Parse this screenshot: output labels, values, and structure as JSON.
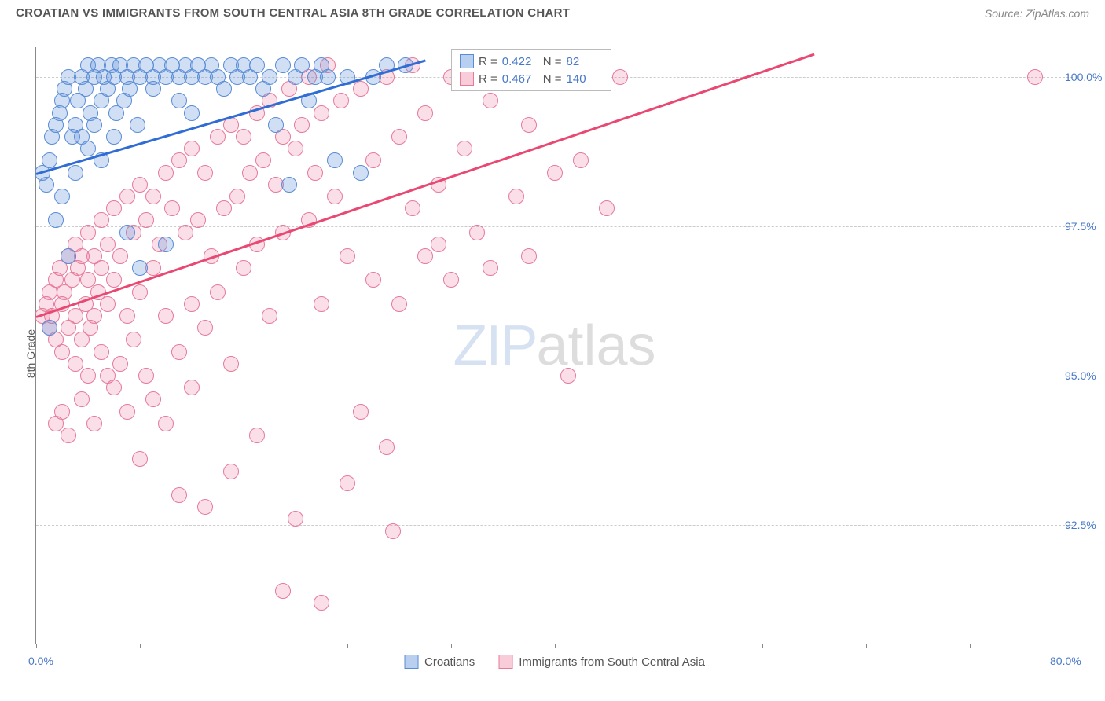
{
  "header": {
    "title": "CROATIAN VS IMMIGRANTS FROM SOUTH CENTRAL ASIA 8TH GRADE CORRELATION CHART",
    "source": "Source: ZipAtlas.com"
  },
  "ylabel": "8th Grade",
  "watermark": {
    "a": "ZIP",
    "b": "atlas"
  },
  "chart": {
    "type": "scatter",
    "xlim": [
      0,
      80
    ],
    "ylim": [
      90.5,
      100.5
    ],
    "xtick_positions": [
      0,
      8,
      16,
      24,
      32,
      40,
      48,
      56,
      64,
      72,
      80
    ],
    "xtick_label_min": "0.0%",
    "xtick_label_max": "80.0%",
    "ytick_positions": [
      92.5,
      95.0,
      97.5,
      100.0
    ],
    "ytick_labels": [
      "92.5%",
      "95.0%",
      "97.5%",
      "100.0%"
    ],
    "grid_color": "#cccccc",
    "marker_radius": 10,
    "series": [
      {
        "name": "Croatians",
        "color_fill": "rgba(99,148,219,0.30)",
        "color_stroke": "#5a8cd6",
        "class": "pt-blue",
        "trend_class": "trend-blue",
        "trend": {
          "x1": 0,
          "y1": 98.4,
          "x2": 30,
          "y2": 100.3
        },
        "stats": {
          "R": "0.422",
          "N": "82"
        },
        "points": [
          [
            0.5,
            98.4
          ],
          [
            0.8,
            98.2
          ],
          [
            1.0,
            95.8
          ],
          [
            1.0,
            98.6
          ],
          [
            1.2,
            99.0
          ],
          [
            1.5,
            99.2
          ],
          [
            1.5,
            97.6
          ],
          [
            1.8,
            99.4
          ],
          [
            2.0,
            98.0
          ],
          [
            2.0,
            99.6
          ],
          [
            2.2,
            99.8
          ],
          [
            2.5,
            100.0
          ],
          [
            2.5,
            97.0
          ],
          [
            2.8,
            99.0
          ],
          [
            3.0,
            99.2
          ],
          [
            3.0,
            98.4
          ],
          [
            3.2,
            99.6
          ],
          [
            3.5,
            100.0
          ],
          [
            3.5,
            99.0
          ],
          [
            3.8,
            99.8
          ],
          [
            4.0,
            100.2
          ],
          [
            4.0,
            98.8
          ],
          [
            4.2,
            99.4
          ],
          [
            4.5,
            100.0
          ],
          [
            4.5,
            99.2
          ],
          [
            4.8,
            100.2
          ],
          [
            5.0,
            99.6
          ],
          [
            5.0,
            98.6
          ],
          [
            5.2,
            100.0
          ],
          [
            5.5,
            99.8
          ],
          [
            5.8,
            100.2
          ],
          [
            6.0,
            99.0
          ],
          [
            6.0,
            100.0
          ],
          [
            6.2,
            99.4
          ],
          [
            6.5,
            100.2
          ],
          [
            6.8,
            99.6
          ],
          [
            7.0,
            100.0
          ],
          [
            7.0,
            97.4
          ],
          [
            7.2,
            99.8
          ],
          [
            7.5,
            100.2
          ],
          [
            7.8,
            99.2
          ],
          [
            8.0,
            100.0
          ],
          [
            8.0,
            96.8
          ],
          [
            8.5,
            100.2
          ],
          [
            9.0,
            99.8
          ],
          [
            9.0,
            100.0
          ],
          [
            9.5,
            100.2
          ],
          [
            10.0,
            100.0
          ],
          [
            10.0,
            97.2
          ],
          [
            10.5,
            100.2
          ],
          [
            11.0,
            99.6
          ],
          [
            11.0,
            100.0
          ],
          [
            11.5,
            100.2
          ],
          [
            12.0,
            100.0
          ],
          [
            12.0,
            99.4
          ],
          [
            12.5,
            100.2
          ],
          [
            13.0,
            100.0
          ],
          [
            13.5,
            100.2
          ],
          [
            14.0,
            100.0
          ],
          [
            14.5,
            99.8
          ],
          [
            15.0,
            100.2
          ],
          [
            15.5,
            100.0
          ],
          [
            16.0,
            100.2
          ],
          [
            16.5,
            100.0
          ],
          [
            17.0,
            100.2
          ],
          [
            17.5,
            99.8
          ],
          [
            18.0,
            100.0
          ],
          [
            18.5,
            99.2
          ],
          [
            19.0,
            100.2
          ],
          [
            19.5,
            98.2
          ],
          [
            20.0,
            100.0
          ],
          [
            20.5,
            100.2
          ],
          [
            21.0,
            99.6
          ],
          [
            21.5,
            100.0
          ],
          [
            22.0,
            100.2
          ],
          [
            22.5,
            100.0
          ],
          [
            23.0,
            98.6
          ],
          [
            24.0,
            100.0
          ],
          [
            25.0,
            98.4
          ],
          [
            26.0,
            100.0
          ],
          [
            27.0,
            100.2
          ],
          [
            28.5,
            100.2
          ]
        ]
      },
      {
        "name": "Immigrants from South Central Asia",
        "color_fill": "rgba(237,110,150,0.22)",
        "color_stroke": "#e67a9a",
        "class": "pt-pink",
        "trend_class": "trend-pink",
        "trend": {
          "x1": 0,
          "y1": 96.0,
          "x2": 60,
          "y2": 100.4
        },
        "stats": {
          "R": "0.467",
          "N": "140"
        },
        "points": [
          [
            0.5,
            96.0
          ],
          [
            0.8,
            96.2
          ],
          [
            1.0,
            95.8
          ],
          [
            1.0,
            96.4
          ],
          [
            1.2,
            96.0
          ],
          [
            1.5,
            96.6
          ],
          [
            1.5,
            95.6
          ],
          [
            1.5,
            94.2
          ],
          [
            1.8,
            96.8
          ],
          [
            2.0,
            96.2
          ],
          [
            2.0,
            95.4
          ],
          [
            2.0,
            94.4
          ],
          [
            2.2,
            96.4
          ],
          [
            2.5,
            97.0
          ],
          [
            2.5,
            95.8
          ],
          [
            2.5,
            94.0
          ],
          [
            2.8,
            96.6
          ],
          [
            3.0,
            96.0
          ],
          [
            3.0,
            95.2
          ],
          [
            3.0,
            97.2
          ],
          [
            3.2,
            96.8
          ],
          [
            3.5,
            95.6
          ],
          [
            3.5,
            97.0
          ],
          [
            3.5,
            94.6
          ],
          [
            3.8,
            96.2
          ],
          [
            4.0,
            97.4
          ],
          [
            4.0,
            95.0
          ],
          [
            4.0,
            96.6
          ],
          [
            4.2,
            95.8
          ],
          [
            4.5,
            97.0
          ],
          [
            4.5,
            96.0
          ],
          [
            4.5,
            94.2
          ],
          [
            4.8,
            96.4
          ],
          [
            5.0,
            97.6
          ],
          [
            5.0,
            95.4
          ],
          [
            5.0,
            96.8
          ],
          [
            5.5,
            97.2
          ],
          [
            5.5,
            95.0
          ],
          [
            5.5,
            96.2
          ],
          [
            6.0,
            97.8
          ],
          [
            6.0,
            94.8
          ],
          [
            6.0,
            96.6
          ],
          [
            6.5,
            97.0
          ],
          [
            6.5,
            95.2
          ],
          [
            7.0,
            98.0
          ],
          [
            7.0,
            96.0
          ],
          [
            7.0,
            94.4
          ],
          [
            7.5,
            97.4
          ],
          [
            7.5,
            95.6
          ],
          [
            8.0,
            98.2
          ],
          [
            8.0,
            96.4
          ],
          [
            8.0,
            93.6
          ],
          [
            8.5,
            97.6
          ],
          [
            8.5,
            95.0
          ],
          [
            9.0,
            98.0
          ],
          [
            9.0,
            96.8
          ],
          [
            9.0,
            94.6
          ],
          [
            9.5,
            97.2
          ],
          [
            10.0,
            98.4
          ],
          [
            10.0,
            96.0
          ],
          [
            10.0,
            94.2
          ],
          [
            10.5,
            97.8
          ],
          [
            11.0,
            98.6
          ],
          [
            11.0,
            95.4
          ],
          [
            11.0,
            93.0
          ],
          [
            11.5,
            97.4
          ],
          [
            12.0,
            98.8
          ],
          [
            12.0,
            96.2
          ],
          [
            12.0,
            94.8
          ],
          [
            12.5,
            97.6
          ],
          [
            13.0,
            98.4
          ],
          [
            13.0,
            95.8
          ],
          [
            13.0,
            92.8
          ],
          [
            13.5,
            97.0
          ],
          [
            14.0,
            99.0
          ],
          [
            14.0,
            96.4
          ],
          [
            14.5,
            97.8
          ],
          [
            15.0,
            99.2
          ],
          [
            15.0,
            95.2
          ],
          [
            15.0,
            93.4
          ],
          [
            15.5,
            98.0
          ],
          [
            16.0,
            99.0
          ],
          [
            16.0,
            96.8
          ],
          [
            16.5,
            98.4
          ],
          [
            17.0,
            99.4
          ],
          [
            17.0,
            97.2
          ],
          [
            17.0,
            94.0
          ],
          [
            17.5,
            98.6
          ],
          [
            18.0,
            99.6
          ],
          [
            18.0,
            96.0
          ],
          [
            18.5,
            98.2
          ],
          [
            19.0,
            99.0
          ],
          [
            19.0,
            97.4
          ],
          [
            19.0,
            91.4
          ],
          [
            19.5,
            99.8
          ],
          [
            20.0,
            98.8
          ],
          [
            20.0,
            92.6
          ],
          [
            20.5,
            99.2
          ],
          [
            21.0,
            100.0
          ],
          [
            21.0,
            97.6
          ],
          [
            21.5,
            98.4
          ],
          [
            22.0,
            99.4
          ],
          [
            22.0,
            96.2
          ],
          [
            22.0,
            91.2
          ],
          [
            22.5,
            100.2
          ],
          [
            23.0,
            98.0
          ],
          [
            23.5,
            99.6
          ],
          [
            24.0,
            97.0
          ],
          [
            24.0,
            93.2
          ],
          [
            25.0,
            99.8
          ],
          [
            25.0,
            94.4
          ],
          [
            26.0,
            98.6
          ],
          [
            26.0,
            96.6
          ],
          [
            27.0,
            100.0
          ],
          [
            27.0,
            93.8
          ],
          [
            27.5,
            92.4
          ],
          [
            28.0,
            99.0
          ],
          [
            28.0,
            96.2
          ],
          [
            29.0,
            100.2
          ],
          [
            29.0,
            97.8
          ],
          [
            30.0,
            99.4
          ],
          [
            30.0,
            97.0
          ],
          [
            31.0,
            98.2
          ],
          [
            31.0,
            97.2
          ],
          [
            32.0,
            100.0
          ],
          [
            32.0,
            96.6
          ],
          [
            33.0,
            98.8
          ],
          [
            34.0,
            97.4
          ],
          [
            35.0,
            99.6
          ],
          [
            35.0,
            96.8
          ],
          [
            36.0,
            100.2
          ],
          [
            37.0,
            98.0
          ],
          [
            38.0,
            99.2
          ],
          [
            38.0,
            97.0
          ],
          [
            40.0,
            98.4
          ],
          [
            41.0,
            95.0
          ],
          [
            42.0,
            98.6
          ],
          [
            44.0,
            97.8
          ],
          [
            45.0,
            100.0
          ],
          [
            77.0,
            100.0
          ]
        ]
      }
    ]
  },
  "legend_box": {
    "left_x": 32,
    "rows": [
      {
        "swatch": "sw-blue",
        "R_label": "R =",
        "R": "0.422",
        "N_label": "N =",
        "N": "  82"
      },
      {
        "swatch": "sw-pink",
        "R_label": "R =",
        "R": "0.467",
        "N_label": "N =",
        "N": "140"
      }
    ]
  },
  "bottom_legend": [
    {
      "swatch": "sw-blue",
      "label": "Croatians"
    },
    {
      "swatch": "sw-pink",
      "label": "Immigrants from South Central Asia"
    }
  ]
}
